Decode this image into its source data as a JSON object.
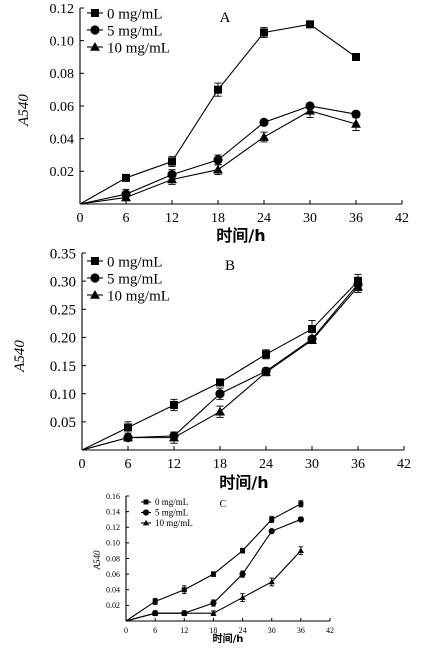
{
  "chart_data": [
    {
      "type": "line",
      "title": "A",
      "xlabel": "时间/h",
      "ylabel": "A540",
      "x": [
        0,
        6,
        12,
        18,
        24,
        30,
        36
      ],
      "xticks": [
        0,
        6,
        12,
        18,
        24,
        30,
        36,
        42
      ],
      "xtick_labels": [
        "0",
        "6",
        "12",
        "18",
        "24",
        "30",
        "36",
        "42"
      ],
      "xlim": [
        0,
        42
      ],
      "ylim": [
        0,
        0.12
      ],
      "yticks": [
        0.02,
        0.04,
        0.06,
        0.08,
        0.1,
        0.12
      ],
      "ytick_labels": [
        "0.02",
        "0.04",
        "0.06",
        "0.08",
        "0.10",
        "0.12"
      ],
      "grid": false,
      "legend": "top-left",
      "series": [
        {
          "name": "0 mg/mL",
          "marker": "square",
          "values": [
            0,
            0.016,
            0.026,
            0.07,
            0.105,
            0.11,
            0.09
          ],
          "errors": [
            0,
            0.002,
            0.003,
            0.004,
            0.003,
            0.002,
            0.001
          ]
        },
        {
          "name": "5 mg/mL",
          "marker": "circle",
          "values": [
            0,
            0.006,
            0.018,
            0.027,
            0.05,
            0.06,
            0.055
          ],
          "errors": [
            0,
            0.003,
            0.003,
            0.003,
            0.001,
            0.001,
            0.001
          ]
        },
        {
          "name": "10 mg/mL",
          "marker": "triangle",
          "values": [
            0,
            0.004,
            0.015,
            0.021,
            0.041,
            0.057,
            0.049
          ],
          "errors": [
            0,
            0.002,
            0.003,
            0.003,
            0.003,
            0.004,
            0.004
          ]
        }
      ]
    },
    {
      "type": "line",
      "title": "B",
      "xlabel": "时间/h",
      "ylabel": "A540",
      "x": [
        0,
        6,
        12,
        18,
        24,
        30,
        36
      ],
      "xticks": [
        0,
        6,
        12,
        18,
        24,
        30,
        36,
        42
      ],
      "xtick_labels": [
        "0",
        "6",
        "12",
        "18",
        "24",
        "30",
        "36",
        "42"
      ],
      "xlim": [
        0,
        42
      ],
      "ylim": [
        0,
        0.35
      ],
      "yticks": [
        0.05,
        0.1,
        0.15,
        0.2,
        0.25,
        0.3,
        0.35
      ],
      "ytick_labels": [
        "0.05",
        "0.10",
        "0.15",
        "0.20",
        "0.25",
        "0.30",
        "0.35"
      ],
      "grid": false,
      "legend": "top-left",
      "series": [
        {
          "name": "0 mg/mL",
          "marker": "square",
          "values": [
            0,
            0.04,
            0.08,
            0.12,
            0.17,
            0.215,
            0.3
          ],
          "errors": [
            0,
            0.01,
            0.01,
            0.005,
            0.008,
            0.015,
            0.012
          ]
        },
        {
          "name": "5 mg/mL",
          "marker": "circle",
          "values": [
            0,
            0.022,
            0.025,
            0.1,
            0.14,
            0.197,
            0.295
          ],
          "errors": [
            0,
            0.003,
            0.005,
            0.01,
            0.006,
            0.005,
            0.012
          ]
        },
        {
          "name": "10 mg/mL",
          "marker": "triangle",
          "values": [
            0,
            0.022,
            0.022,
            0.068,
            0.138,
            0.195,
            0.29
          ],
          "errors": [
            0,
            0.003,
            0.01,
            0.01,
            0.006,
            0.005,
            0.01
          ]
        }
      ]
    },
    {
      "type": "line",
      "title": "C",
      "xlabel": "时间/h",
      "ylabel": "A540",
      "x": [
        0,
        6,
        12,
        18,
        24,
        30,
        36
      ],
      "xticks": [
        0,
        6,
        12,
        18,
        24,
        30,
        36,
        42
      ],
      "xtick_labels": [
        "0",
        "6",
        "12",
        "18",
        "24",
        "30",
        "36",
        "42"
      ],
      "xlim": [
        0,
        42
      ],
      "ylim": [
        0,
        0.16
      ],
      "yticks": [
        0.02,
        0.04,
        0.06,
        0.08,
        0.1,
        0.12,
        0.14,
        0.16
      ],
      "ytick_labels": [
        "0.02",
        "0.04",
        "0.06",
        "0.08",
        "0.10",
        "0.12",
        "0.14",
        "0.16"
      ],
      "grid": false,
      "legend": "top-left",
      "series": [
        {
          "name": "0 mg/mL",
          "marker": "square",
          "values": [
            0,
            0.025,
            0.04,
            0.06,
            0.09,
            0.13,
            0.15
          ],
          "errors": [
            0,
            0.004,
            0.005,
            0.003,
            0.003,
            0.004,
            0.004
          ]
        },
        {
          "name": "5 mg/mL",
          "marker": "circle",
          "values": [
            0,
            0.01,
            0.01,
            0.023,
            0.06,
            0.115,
            0.13
          ],
          "errors": [
            0,
            0.003,
            0.003,
            0.004,
            0.004,
            0.002,
            0.003
          ]
        },
        {
          "name": "10 mg/mL",
          "marker": "triangle",
          "values": [
            0,
            0.01,
            0.01,
            0.01,
            0.03,
            0.05,
            0.09
          ],
          "errors": [
            0,
            0.003,
            0.003,
            0.003,
            0.005,
            0.005,
            0.005
          ]
        }
      ]
    }
  ]
}
